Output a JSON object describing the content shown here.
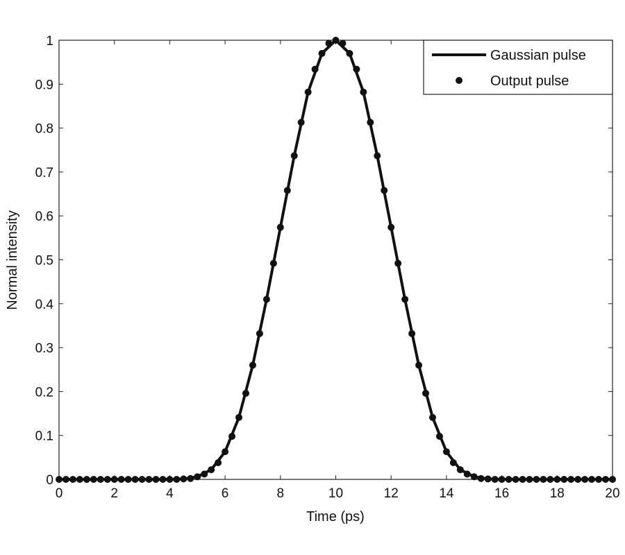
{
  "chart_data": {
    "type": "line",
    "title": "",
    "xlabel": "Time (ps)",
    "ylabel": "Normal intensity",
    "xlim": [
      0,
      20
    ],
    "ylim": [
      0,
      1
    ],
    "xticks": [
      0,
      2,
      4,
      6,
      8,
      10,
      12,
      14,
      16,
      18,
      20
    ],
    "yticks": [
      0,
      0.1,
      0.2,
      0.3,
      0.4,
      0.5,
      0.6,
      0.7,
      0.8,
      0.9,
      1
    ],
    "grid": false,
    "legend_position": "top-right",
    "series": [
      {
        "name": "Gaussian pulse",
        "style": "solid-line",
        "color": "#111111",
        "x": [
          0,
          1,
          2,
          3,
          4,
          4.5,
          5,
          5.5,
          6,
          6.5,
          7,
          7.5,
          8,
          8.5,
          9,
          9.5,
          10,
          10.5,
          11,
          11.5,
          12,
          12.5,
          13,
          13.5,
          14,
          14.5,
          15,
          15.5,
          16,
          17,
          18,
          19,
          20
        ],
        "y": [
          0,
          0,
          0,
          0,
          0,
          0.001,
          0.006,
          0.022,
          0.063,
          0.141,
          0.26,
          0.41,
          0.574,
          0.737,
          0.882,
          0.97,
          1,
          0.97,
          0.882,
          0.737,
          0.574,
          0.41,
          0.26,
          0.141,
          0.063,
          0.022,
          0.006,
          0.001,
          0,
          0,
          0,
          0,
          0
        ]
      },
      {
        "name": "Output pulse",
        "style": "dots",
        "color": "#111111",
        "x": [
          0,
          0.25,
          0.5,
          0.75,
          1,
          1.25,
          1.5,
          1.75,
          2,
          2.25,
          2.5,
          2.75,
          3,
          3.25,
          3.5,
          3.75,
          4,
          4.25,
          4.5,
          4.75,
          5,
          5.25,
          5.5,
          5.75,
          6,
          6.25,
          6.5,
          6.75,
          7,
          7.25,
          7.5,
          7.75,
          8,
          8.25,
          8.5,
          8.75,
          9,
          9.25,
          9.5,
          9.75,
          10,
          10.25,
          10.5,
          10.75,
          11,
          11.25,
          11.5,
          11.75,
          12,
          12.25,
          12.5,
          12.75,
          13,
          13.25,
          13.5,
          13.75,
          14,
          14.25,
          14.5,
          14.75,
          15,
          15.25,
          15.5,
          15.75,
          16,
          16.25,
          16.5,
          16.75,
          17,
          17.25,
          17.5,
          17.75,
          18,
          18.25,
          18.5,
          18.75,
          19,
          19.25,
          19.5,
          19.75,
          20
        ],
        "y": [
          0,
          0,
          0,
          0,
          0,
          0,
          0,
          0,
          0,
          0,
          0,
          0,
          0,
          0,
          0,
          0,
          0,
          0,
          0.001,
          0.002,
          0.006,
          0.012,
          0.022,
          0.038,
          0.063,
          0.098,
          0.141,
          0.196,
          0.26,
          0.332,
          0.41,
          0.492,
          0.574,
          0.658,
          0.737,
          0.813,
          0.882,
          0.934,
          0.97,
          0.993,
          1,
          0.993,
          0.97,
          0.934,
          0.882,
          0.813,
          0.737,
          0.658,
          0.574,
          0.492,
          0.41,
          0.332,
          0.26,
          0.196,
          0.141,
          0.098,
          0.063,
          0.038,
          0.022,
          0.012,
          0.006,
          0.002,
          0.001,
          0,
          0,
          0,
          0,
          0,
          0,
          0,
          0,
          0,
          0,
          0,
          0,
          0,
          0,
          0,
          0,
          0,
          0
        ]
      }
    ]
  }
}
